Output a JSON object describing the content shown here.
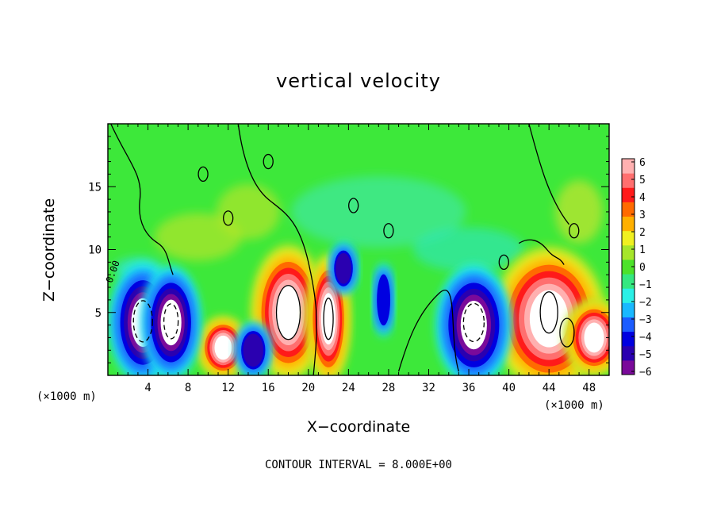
{
  "chart_data": {
    "type": "heatmap",
    "title": "vertical velocity",
    "xlabel": "X−coordinate",
    "ylabel": "Z−coordinate",
    "x_unit": "(×1000 m)",
    "x_unit_right": "(×1000 m)",
    "annotation": "CONTOUR INTERVAL = 8.000E+00",
    "contour_label": "0.00",
    "xlim": [
      0,
      50
    ],
    "ylim": [
      0,
      20
    ],
    "x_ticks": [
      4,
      8,
      12,
      16,
      20,
      24,
      28,
      32,
      36,
      40,
      44,
      48
    ],
    "y_ticks": [
      5,
      10,
      15
    ],
    "colorbar": {
      "ticks": [
        "6",
        "5",
        "4",
        "3",
        "2",
        "1",
        "0",
        "−1",
        "−2",
        "−3",
        "−4",
        "−5",
        "−6"
      ],
      "range": [
        -6,
        6
      ],
      "colors": [
        "#7a0a9a",
        "#2a00b0",
        "#0000e0",
        "#1b5cff",
        "#19b8ff",
        "#2af0e6",
        "#34e880",
        "#4ce22a",
        "#a6e62a",
        "#f0f020",
        "#ffb000",
        "#ff6a00",
        "#ff1a1a",
        "#ff6f6f",
        "#ffb0b0"
      ]
    },
    "features": [
      {
        "kind": "updraft",
        "x": 18.0,
        "z": 5.0,
        "peak": "> 6"
      },
      {
        "kind": "updraft",
        "x": 11.5,
        "z": 2.2,
        "peak": "> 6"
      },
      {
        "kind": "updraft",
        "x": 22.0,
        "z": 4.5,
        "peak": "> 6"
      },
      {
        "kind": "updraft",
        "x": 44.0,
        "z": 4.5,
        "peak": "> 6"
      },
      {
        "kind": "updraft",
        "x": 48.5,
        "z": 3.0,
        "peak": "> 6"
      },
      {
        "kind": "downdraft",
        "x": 3.5,
        "z": 4.2,
        "peak": "< -6"
      },
      {
        "kind": "downdraft",
        "x": 6.3,
        "z": 4.2,
        "peak": "< -6"
      },
      {
        "kind": "downdraft",
        "x": 36.5,
        "z": 4.0,
        "peak": "< -6"
      },
      {
        "kind": "downdraft",
        "x": 14.5,
        "z": 2.0,
        "peak": "-4"
      },
      {
        "kind": "downdraft",
        "x": 23.5,
        "z": 8.5,
        "peak": "-4"
      },
      {
        "kind": "downdraft",
        "x": 27.5,
        "z": 6.0,
        "peak": "-3"
      }
    ]
  }
}
